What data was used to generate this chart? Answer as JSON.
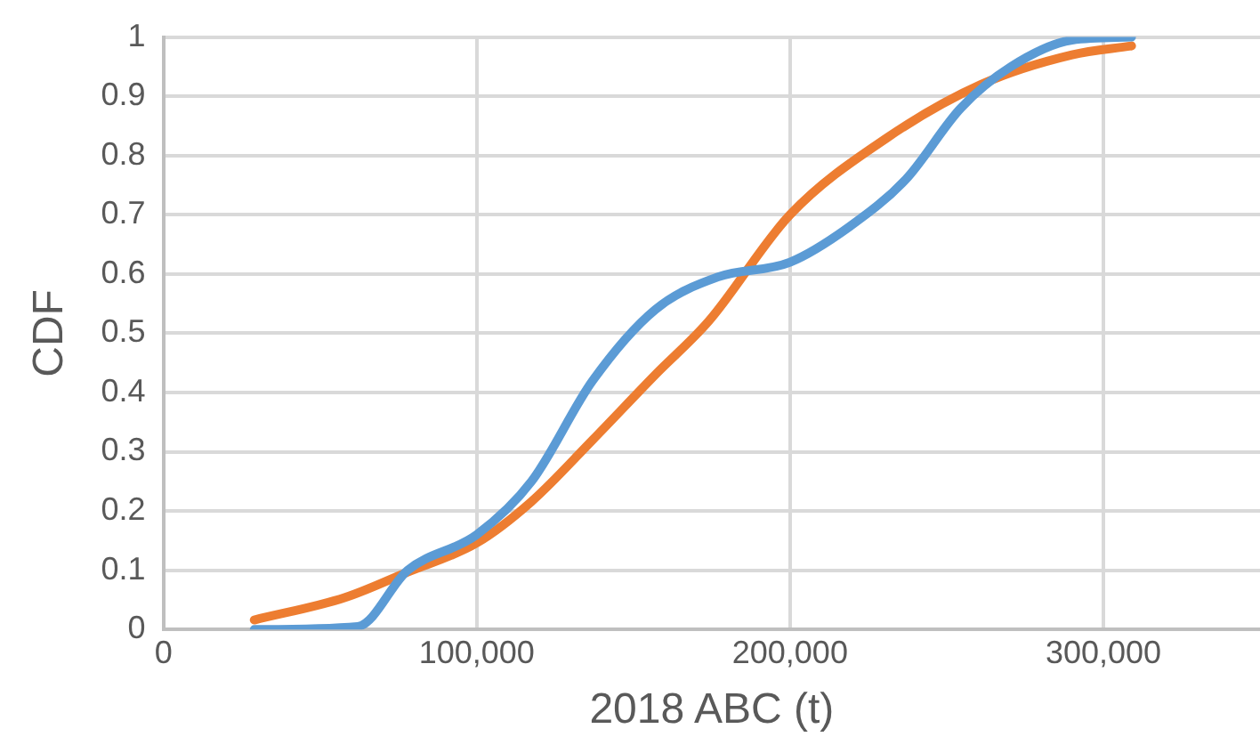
{
  "chart_data": {
    "type": "line",
    "xlabel": "2018 ABC (t)",
    "ylabel": "CDF",
    "xlim": [
      0,
      350000
    ],
    "xticks": [
      {
        "value": 0,
        "label": "0"
      },
      {
        "value": 100000,
        "label": "100,000"
      },
      {
        "value": 200000,
        "label": "200,000"
      },
      {
        "value": 300000,
        "label": "300,000"
      }
    ],
    "ylim": [
      0,
      1
    ],
    "yticks": [
      0,
      0.1,
      0.2,
      0.3,
      0.4,
      0.5,
      0.6,
      0.7,
      0.8,
      0.9,
      1
    ],
    "grid": true,
    "legend": false,
    "marker": "none",
    "line_style": "solid",
    "series": [
      {
        "color": "#5b9bd5",
        "x": [
          29000,
          62000,
          78000,
          100000,
          117500,
          137000,
          157000,
          177000,
          200000,
          219000,
          237000,
          254500,
          270500,
          290000,
          309000
        ],
        "values": [
          0,
          0.005,
          0.1,
          0.16,
          0.25,
          0.42,
          0.54,
          0.595,
          0.62,
          0.68,
          0.76,
          0.88,
          0.95,
          0.995,
          1
        ]
      },
      {
        "color": "#ed7d31",
        "x": [
          29000,
          58000,
          78000,
          100000,
          117500,
          137000,
          157000,
          174000,
          200000,
          231000,
          261000,
          290000,
          309000
        ],
        "values": [
          0.016,
          0.054,
          0.097,
          0.146,
          0.216,
          0.32,
          0.43,
          0.52,
          0.7,
          0.83,
          0.92,
          0.97,
          0.985
        ]
      }
    ]
  }
}
